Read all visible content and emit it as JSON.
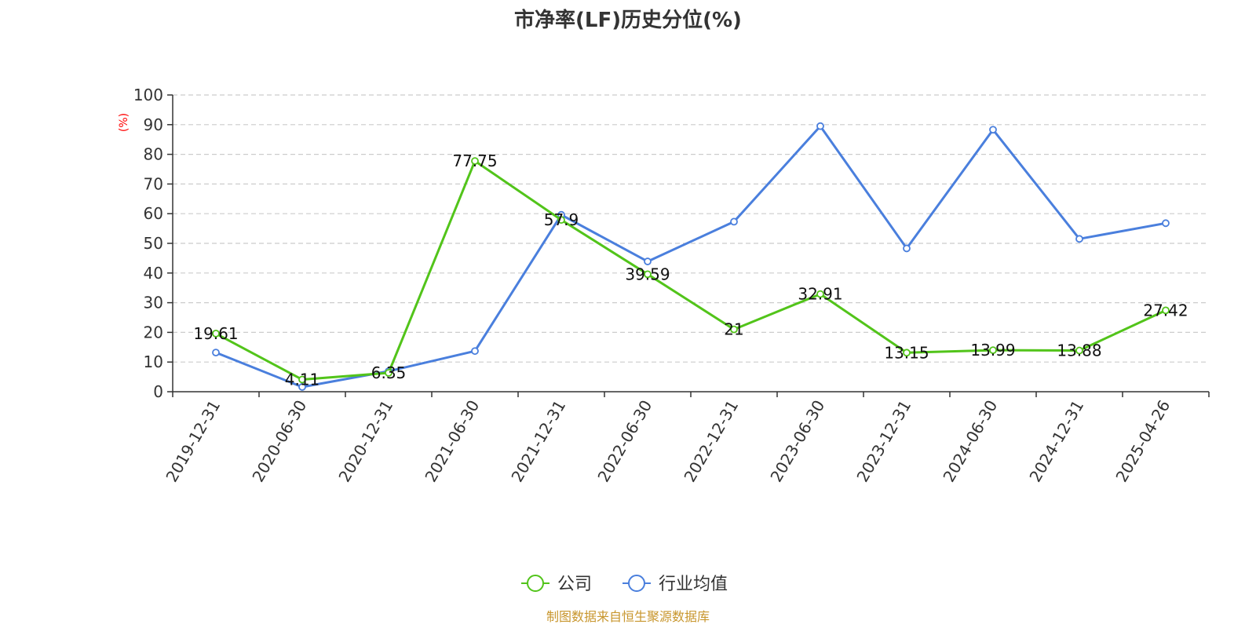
{
  "chart_data": {
    "type": "line",
    "title": "市净率(LF)历史分位(%)",
    "ylabel": "(%)",
    "ylim": [
      0,
      100
    ],
    "yticks": [
      0,
      10,
      20,
      30,
      40,
      50,
      60,
      70,
      80,
      90,
      100
    ],
    "grid": true,
    "legend_position": "bottom",
    "categories": [
      "2019-12-31",
      "2020-06-30",
      "2020-12-31",
      "2021-06-30",
      "2021-12-31",
      "2022-06-30",
      "2022-12-31",
      "2023-06-30",
      "2023-12-31",
      "2024-06-30",
      "2024-12-31",
      "2025-04-26"
    ],
    "series": [
      {
        "name": "公司",
        "color": "#52c41a",
        "values": [
          19.61,
          4.11,
          6.35,
          77.75,
          57.9,
          39.59,
          21,
          32.91,
          13.15,
          13.99,
          13.88,
          27.42
        ],
        "labels": [
          "19.61",
          "4.11",
          "6.35",
          "77.75",
          "57.9",
          "39.59",
          "21",
          "32.91",
          "13.15",
          "13.99",
          "13.88",
          "27.42"
        ]
      },
      {
        "name": "行业均值",
        "color": "#4a7fdd",
        "values": [
          13.2,
          1.6,
          6.9,
          13.7,
          59.6,
          43.9,
          57.3,
          89.5,
          48.3,
          88.3,
          51.5,
          56.8
        ]
      }
    ],
    "source": "制图数据来自恒生聚源数据库",
    "colors": {
      "ylabel": "#ff0000",
      "source": "#c8962d",
      "grid": "#cccccc",
      "axis": "#333333"
    }
  }
}
